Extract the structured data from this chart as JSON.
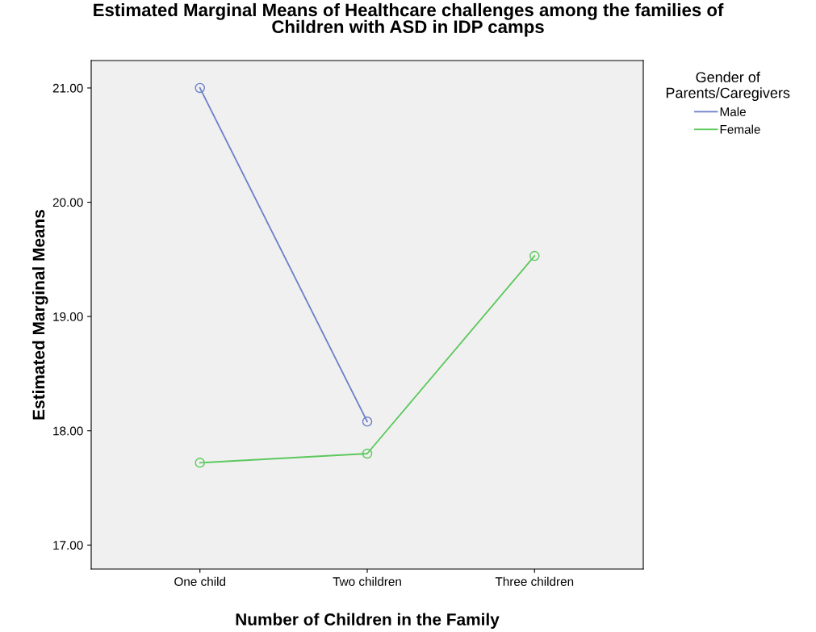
{
  "chart_data": {
    "type": "line",
    "title": "Estimated Marginal Means of Healthcare challenges among the families of\nChildren with ASD in IDP camps",
    "xlabel": "Number of Children in the Family",
    "ylabel": "Estimated Marginal Means",
    "legend_title": "Gender of\nParents/Caregivers",
    "categories": [
      "One child",
      "Two children",
      "Three children"
    ],
    "series": [
      {
        "name": "Male",
        "color": "#6b7fc8",
        "values": [
          21.0,
          18.08,
          null
        ]
      },
      {
        "name": "Female",
        "color": "#5cc85c",
        "values": [
          17.72,
          17.8,
          19.53
        ]
      }
    ],
    "ylim": [
      16.79,
      21.24
    ],
    "yticks": [
      {
        "value": 17,
        "label": "17.00"
      },
      {
        "value": 18,
        "label": "18.00"
      },
      {
        "value": 19,
        "label": "19.00"
      },
      {
        "value": 20,
        "label": "20.00"
      },
      {
        "value": 21,
        "label": "21.00"
      }
    ],
    "marker": "circle",
    "line_style": "solid",
    "grid": false,
    "legend": "top right"
  }
}
